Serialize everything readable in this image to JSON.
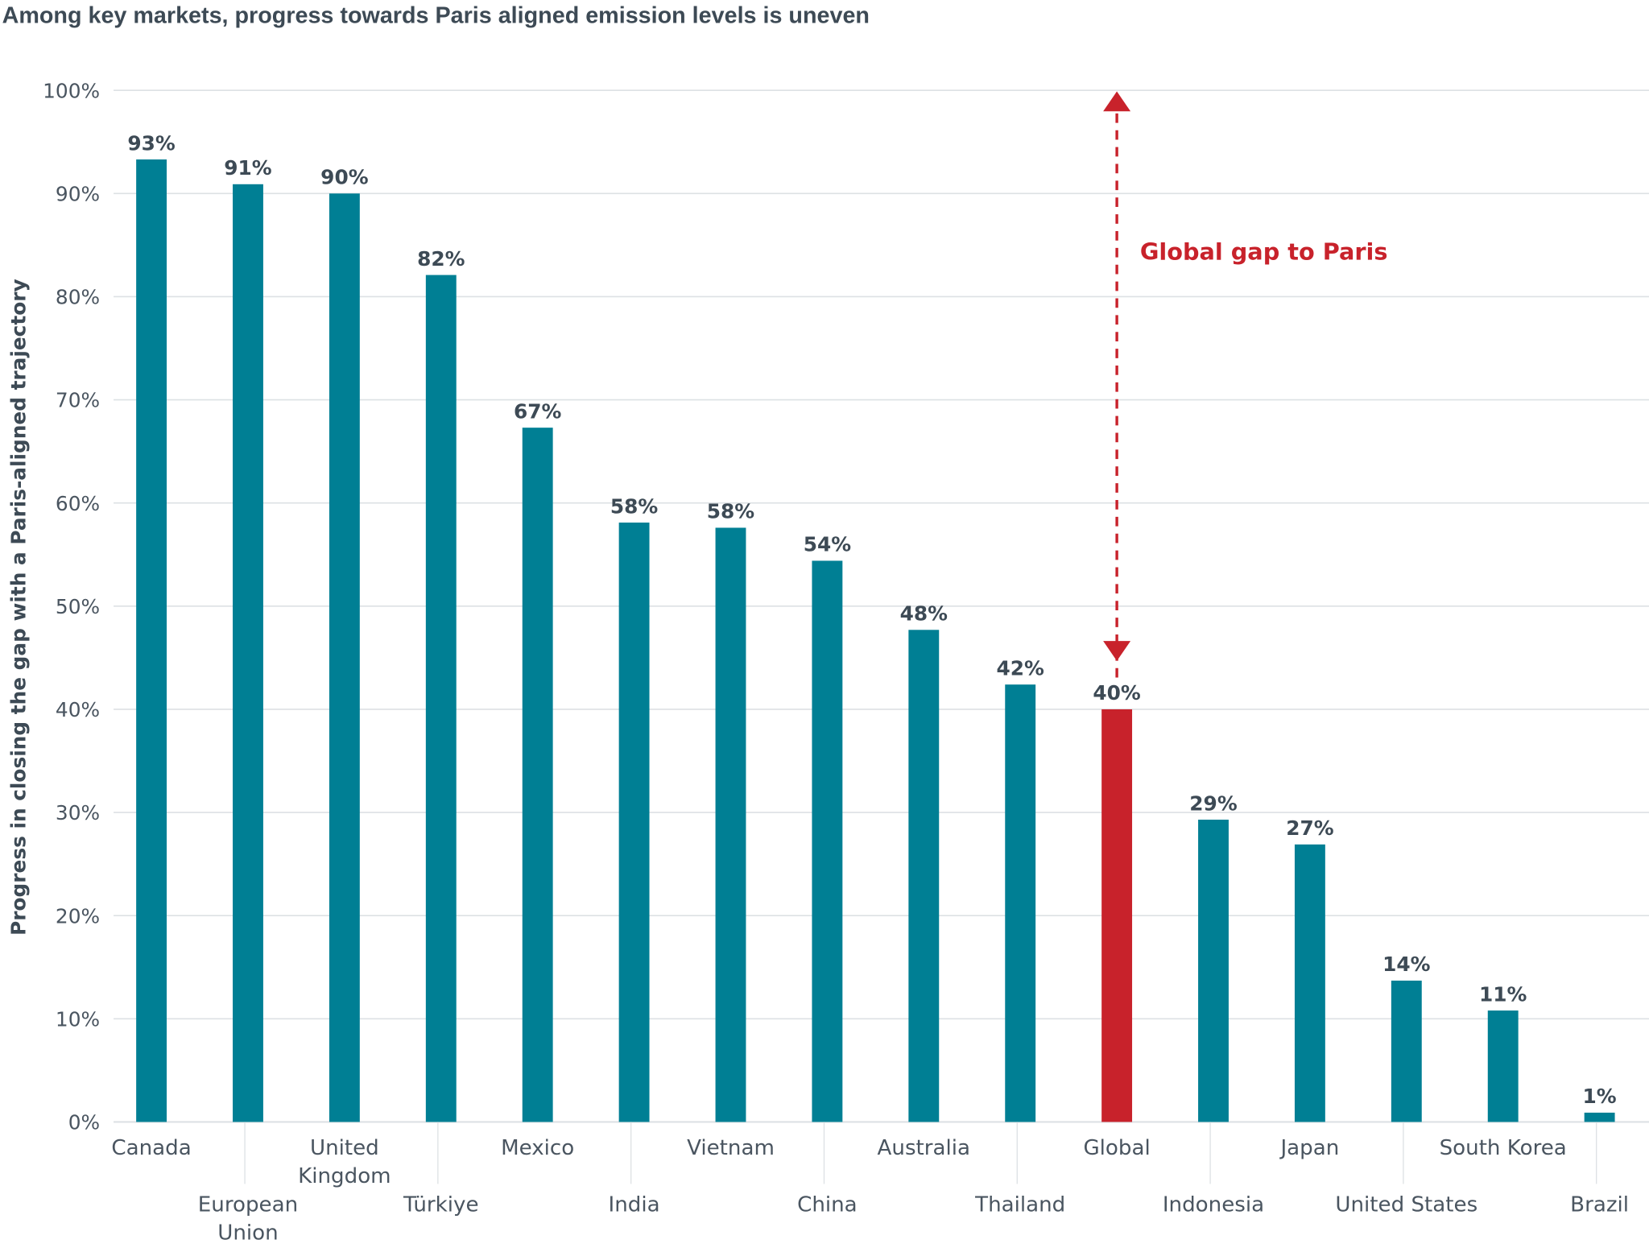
{
  "chart_data": {
    "type": "bar",
    "title": "Among key markets, progress towards Paris aligned emission levels is uneven",
    "xlabel": "",
    "ylabel": "Progress in closing the gap with a Paris-aligned trajectory",
    "ylim": [
      0,
      100
    ],
    "yticks": [
      "0%",
      "10%",
      "20%",
      "30%",
      "40%",
      "50%",
      "60%",
      "70%",
      "80%",
      "90%",
      "100%"
    ],
    "grid": true,
    "categories": [
      "Canada",
      "European Union",
      "United Kingdom",
      "Türkiye",
      "Mexico",
      "India",
      "Vietnam",
      "China",
      "Australia",
      "Thailand",
      "Global",
      "Indonesia",
      "Japan",
      "United States",
      "South Korea",
      "Brazil"
    ],
    "category_lines": [
      [
        "Canada"
      ],
      [
        "European",
        "Union"
      ],
      [
        "United",
        "Kingdom"
      ],
      [
        "Türkiye"
      ],
      [
        "Mexico"
      ],
      [
        "India"
      ],
      [
        "Vietnam"
      ],
      [
        "China"
      ],
      [
        "Australia"
      ],
      [
        "Thailand"
      ],
      [
        "Global"
      ],
      [
        "Indonesia"
      ],
      [
        "Japan"
      ],
      [
        "United States"
      ],
      [
        "South Korea"
      ],
      [
        "Brazil"
      ]
    ],
    "values": [
      93.3,
      90.9,
      90.0,
      82.1,
      67.3,
      58.1,
      57.6,
      54.4,
      47.7,
      42.4,
      40.0,
      29.3,
      26.9,
      13.7,
      10.8,
      0.9
    ],
    "data_labels": [
      "93%",
      "91%",
      "90%",
      "82%",
      "67%",
      "58%",
      "58%",
      "54%",
      "48%",
      "42%",
      "40%",
      "29%",
      "27%",
      "14%",
      "11%",
      "1%"
    ],
    "highlight_category": "Global",
    "colors": {
      "bar": "#007f94",
      "highlight": "#c8222b",
      "text": "#3d4a55",
      "grid": "#dde1e4"
    },
    "annotation": {
      "text": "Global gap to Paris",
      "from_value": 40,
      "to_value": 100,
      "color": "#c8222b"
    }
  }
}
